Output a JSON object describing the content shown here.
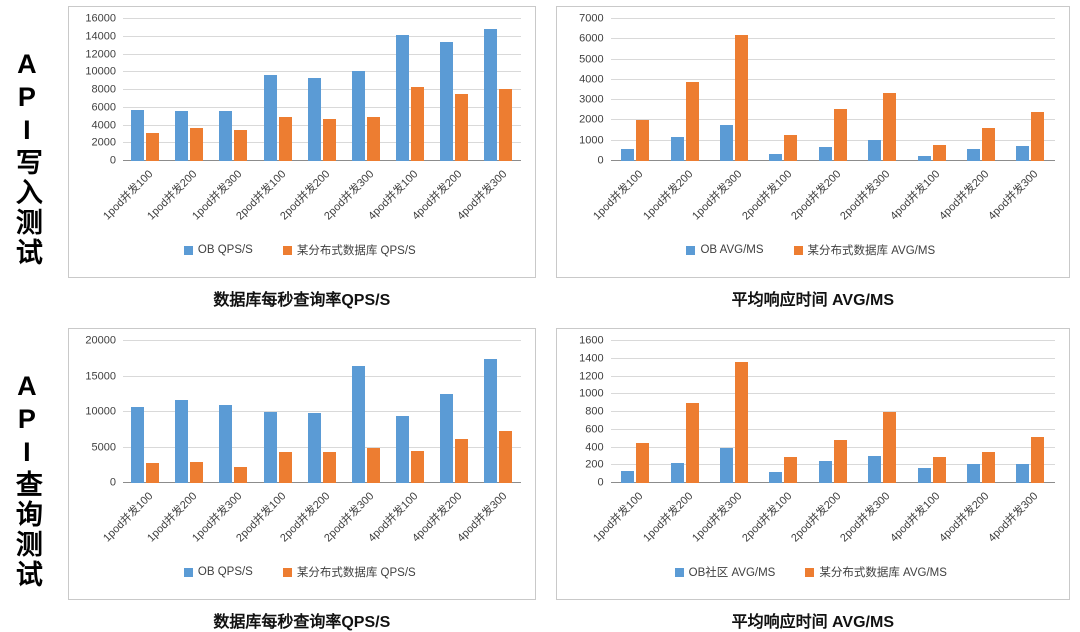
{
  "page": {
    "row_labels": [
      "API写入测试",
      "API查询测试"
    ]
  },
  "colors": {
    "series_blue": "#5B9BD5",
    "series_orange": "#ED7D31",
    "gridline": "#d9d9d9",
    "axis": "#8c8c8c"
  },
  "chart_data": [
    {
      "type": "bar",
      "title": "数据库每秒查询率QPS/S",
      "categories": [
        "1pod并发100",
        "1pod并发200",
        "1pod并发300",
        "2pod并发100",
        "2pod并发200",
        "2pod并发300",
        "4pod并发100",
        "4pod并发200",
        "4pod并发300"
      ],
      "series": [
        {
          "name": "OB QPS/S",
          "color": "#5B9BD5",
          "values": [
            5700,
            5600,
            5600,
            9700,
            9400,
            10100,
            14200,
            13400,
            14900
          ]
        },
        {
          "name": "某分布式数据库 QPS/S",
          "color": "#ED7D31",
          "values": [
            3200,
            3700,
            3500,
            5000,
            4700,
            5000,
            8300,
            7500,
            8100
          ]
        }
      ],
      "xlabel": "",
      "ylabel": "",
      "ylim": [
        0,
        16000
      ],
      "ytick_step": 2000,
      "grid": true,
      "legend_position": "bottom"
    },
    {
      "type": "bar",
      "title": "平均响应时间 AVG/MS",
      "categories": [
        "1pod并发100",
        "1pod并发200",
        "1pod并发300",
        "2pod并发100",
        "2pod并发200",
        "2pod并发300",
        "4pod并发100",
        "4pod并发200",
        "4pod并发300"
      ],
      "series": [
        {
          "name": "OB AVG/MS",
          "color": "#5B9BD5",
          "values": [
            600,
            1200,
            1800,
            350,
            700,
            1050,
            250,
            600,
            750
          ]
        },
        {
          "name": "某分布式数据库 AVG/MS",
          "color": "#ED7D31",
          "values": [
            2000,
            3900,
            6200,
            1300,
            2550,
            3350,
            800,
            1650,
            2400
          ]
        }
      ],
      "xlabel": "",
      "ylabel": "",
      "ylim": [
        0,
        7000
      ],
      "ytick_step": 1000,
      "grid": true,
      "legend_position": "bottom"
    },
    {
      "type": "bar",
      "title": "数据库每秒查询率QPS/S",
      "categories": [
        "1pod并发100",
        "1pod并发200",
        "1pod并发300",
        "2pod并发100",
        "2pod并发200",
        "2pod并发300",
        "4pod并发100",
        "4pod并发200",
        "4pod并发300"
      ],
      "series": [
        {
          "name": "OB QPS/S",
          "color": "#5B9BD5",
          "values": [
            10700,
            11700,
            11000,
            10000,
            9800,
            16500,
            9400,
            12500,
            17500
          ]
        },
        {
          "name": "某分布式数据库 QPS/S",
          "color": "#ED7D31",
          "values": [
            2800,
            2900,
            2200,
            4400,
            4300,
            4900,
            4500,
            6200,
            7300
          ]
        }
      ],
      "xlabel": "",
      "ylabel": "",
      "ylim": [
        0,
        20000
      ],
      "ytick_step": 5000,
      "grid": true,
      "legend_position": "bottom"
    },
    {
      "type": "bar",
      "title": "平均响应时间 AVG/MS",
      "categories": [
        "1pod并发100",
        "1pod并发200",
        "1pod并发300",
        "2pod并发100",
        "2pod并发200",
        "2pod并发300",
        "4pod并发100",
        "4pod并发200",
        "4pod并发300"
      ],
      "series": [
        {
          "name": "OB社区 AVG/MS",
          "color": "#5B9BD5",
          "values": [
            130,
            230,
            390,
            120,
            250,
            310,
            170,
            210,
            210
          ]
        },
        {
          "name": "某分布式数据库 AVG/MS",
          "color": "#ED7D31",
          "values": [
            450,
            900,
            1360,
            290,
            490,
            800,
            290,
            350,
            520
          ]
        }
      ],
      "xlabel": "",
      "ylabel": "",
      "ylim": [
        0,
        1600
      ],
      "ytick_step": 200,
      "grid": true,
      "legend_position": "bottom"
    }
  ]
}
